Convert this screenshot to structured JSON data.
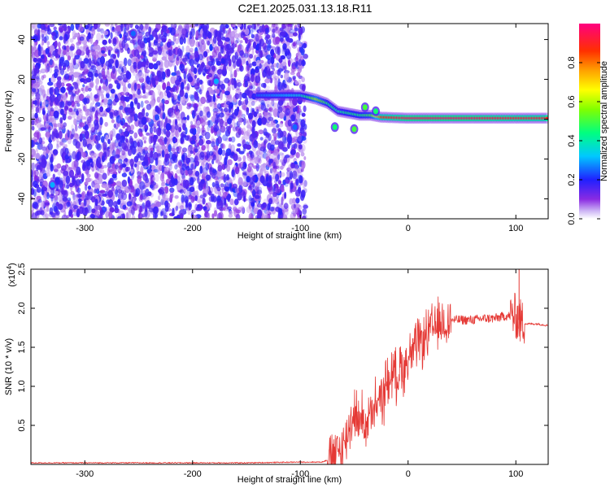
{
  "figure": {
    "title": "C2E1.2025.031.13.18.R11"
  },
  "colors": {
    "snr_line": "#e53935",
    "spectrogram_noise": "#7b2cf0",
    "axis": "#000000"
  },
  "chart_data": [
    {
      "type": "heatmap",
      "title": "C2E1.2025.031.13.18.R11",
      "xlabel": "Height of straight line (km)",
      "ylabel": "Frequency (Hz)",
      "xlim": [
        -350,
        130
      ],
      "ylim": [
        -50,
        48
      ],
      "xticks": [
        -300,
        -200,
        -100,
        0,
        100
      ],
      "yticks": [
        -40,
        -20,
        0,
        20,
        40
      ],
      "colorbar": {
        "label": "Normalized spectral amplitude",
        "range": [
          0,
          1
        ],
        "ticks": [
          0.0,
          0.2,
          0.4,
          0.6,
          0.8
        ],
        "tick_labels": [
          "0.0",
          "0.2",
          "0.4",
          "0.6",
          "0.8"
        ],
        "colormap": "rainbow (white at 0, purple, blue, cyan, green, yellow, orange, red at 1)"
      },
      "features": {
        "noise_region_x": [
          -350,
          -95
        ],
        "signal_track": [
          {
            "x": -140,
            "y": 12,
            "amp": 0.25
          },
          {
            "x": -120,
            "y": 12,
            "amp": 0.3
          },
          {
            "x": -100,
            "y": 12,
            "amp": 0.35
          },
          {
            "x": -85,
            "y": 10,
            "amp": 0.6
          },
          {
            "x": -75,
            "y": 8,
            "amp": 0.45
          },
          {
            "x": -65,
            "y": 4,
            "amp": 0.4
          },
          {
            "x": -55,
            "y": 3,
            "amp": 0.45
          },
          {
            "x": -45,
            "y": 2,
            "amp": 0.45
          },
          {
            "x": -35,
            "y": 2,
            "amp": 0.5
          },
          {
            "x": -25,
            "y": 1,
            "amp": 0.85
          },
          {
            "x": 0,
            "y": 0.5,
            "amp": 0.95
          },
          {
            "x": 50,
            "y": 0.5,
            "amp": 0.95
          },
          {
            "x": 100,
            "y": 0.5,
            "amp": 0.9
          },
          {
            "x": 130,
            "y": 0.5,
            "amp": 0.9
          }
        ],
        "blobs": [
          {
            "x": -330,
            "y": -33,
            "amp": 0.3
          },
          {
            "x": -255,
            "y": 43,
            "amp": 0.25
          },
          {
            "x": -178,
            "y": 19,
            "amp": 0.3
          },
          {
            "x": -68,
            "y": -4,
            "amp": 0.45
          },
          {
            "x": -50,
            "y": -5,
            "amp": 0.5
          },
          {
            "x": -40,
            "y": 6,
            "amp": 0.5
          },
          {
            "x": -30,
            "y": 4,
            "amp": 0.45
          },
          {
            "x": -105,
            "y": -4,
            "amp": 0.25
          }
        ]
      }
    },
    {
      "type": "line",
      "xlabel": "Height of straight line (km)",
      "ylabel": "SNR (10 * v/v)",
      "y_multiplier_label": "(x10",
      "y_multiplier_exponent": "4",
      "xlim": [
        -350,
        130
      ],
      "ylim": [
        0,
        2.5
      ],
      "xticks": [
        -300,
        -200,
        -100,
        0,
        100
      ],
      "yticks": [
        0.5,
        1.0,
        1.5,
        2.0,
        2.5
      ],
      "ytick_labels": [
        "0.5",
        "1.0",
        "1.5",
        "2.0",
        "2.5"
      ],
      "series": [
        {
          "x": [
            -350,
            -250,
            -150,
            -100,
            -80,
            -70,
            -60,
            -55,
            -50,
            -46,
            -42,
            -38,
            -35,
            -32,
            -30,
            -27,
            -25,
            -22,
            -20,
            -18,
            -15,
            -12,
            -10,
            -7,
            -5,
            -2,
            0,
            5,
            10,
            15,
            20,
            25,
            30,
            35,
            40,
            50,
            60,
            70,
            80,
            90,
            95,
            100,
            103,
            105,
            110,
            120,
            130
          ],
          "y": [
            0.02,
            0.02,
            0.02,
            0.03,
            0.03,
            0.08,
            0.22,
            0.45,
            0.7,
            0.55,
            0.6,
            0.5,
            0.65,
            0.55,
            0.8,
            0.75,
            0.9,
            0.85,
            1.15,
            1.0,
            1.2,
            1.15,
            1.1,
            1.3,
            1.2,
            1.3,
            1.35,
            1.45,
            1.55,
            1.6,
            1.7,
            1.75,
            1.8,
            1.82,
            1.85,
            1.85,
            1.85,
            1.87,
            1.87,
            1.9,
            1.9,
            1.9,
            1.85,
            1.82,
            1.8,
            1.8,
            1.78
          ]
        }
      ]
    }
  ]
}
